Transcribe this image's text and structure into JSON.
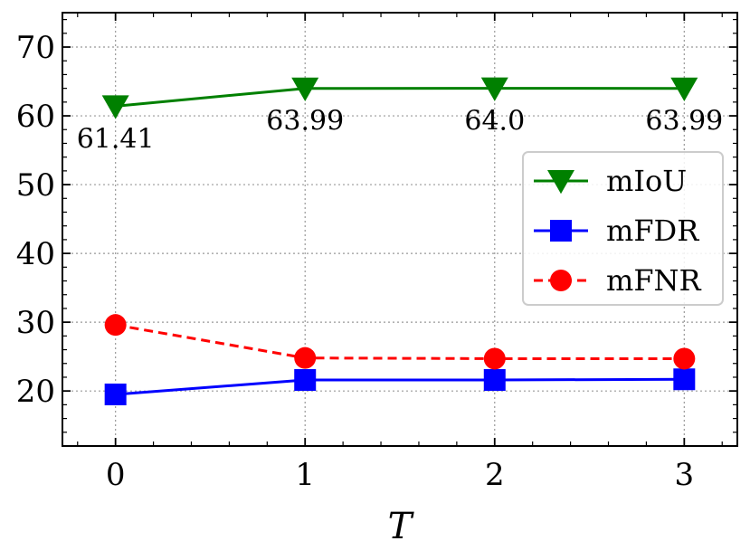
{
  "chart_data": {
    "type": "line",
    "xlabel": "T",
    "ylabel": "",
    "x": [
      0,
      1,
      2,
      3
    ],
    "xticks": [
      "0",
      "1",
      "2",
      "3"
    ],
    "xlim": [
      -0.28,
      3.28
    ],
    "ylim": [
      12,
      75
    ],
    "yticks": [
      "20",
      "30",
      "40",
      "50",
      "60",
      "70"
    ],
    "grid": true,
    "legend_position": "right",
    "series": [
      {
        "name": "mIoU",
        "values": [
          61.41,
          63.99,
          64.0,
          63.99
        ],
        "color": "#008000",
        "marker": "triangle-down",
        "linestyle": "solid",
        "labels": [
          "61.41",
          "63.99",
          "64.0",
          "63.99"
        ]
      },
      {
        "name": "mFDR",
        "values": [
          19.5,
          21.6,
          21.6,
          21.7
        ],
        "color": "#0000ff",
        "marker": "square",
        "linestyle": "solid"
      },
      {
        "name": "mFNR",
        "values": [
          29.6,
          24.8,
          24.7,
          24.7
        ],
        "color": "#ff0000",
        "marker": "circle",
        "linestyle": "dashed"
      }
    ]
  }
}
